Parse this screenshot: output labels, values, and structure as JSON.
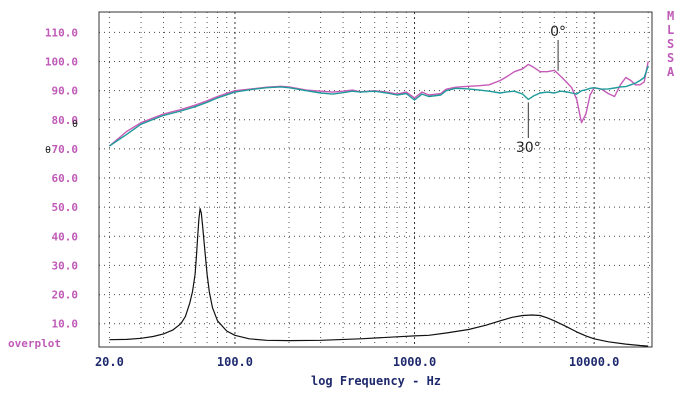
{
  "chart_data": {
    "type": "line",
    "xlabel": "log Frequency - Hz",
    "xscale": "log",
    "xlim": [
      17.5,
      21000
    ],
    "ylim": [
      2,
      117
    ],
    "grid": true,
    "y_ticks": [
      10,
      20,
      30,
      40,
      50,
      60,
      70,
      80,
      90,
      100,
      110
    ],
    "y_tick_labels": [
      "10.0",
      "20.0",
      "30.0",
      "40.0",
      "50.0",
      "60.0",
      "70.0",
      "80.0",
      "90.0",
      "100.0",
      "110.0"
    ],
    "x_tick_labels": [
      {
        "value": 20,
        "label": "20.0"
      },
      {
        "value": 100,
        "label": "100.0"
      },
      {
        "value": 1000,
        "label": "1000.0"
      },
      {
        "value": 10000,
        "label": "10000.0"
      }
    ],
    "overplot_label": "overplot",
    "right_edge_letters": [
      "M",
      "L",
      "S",
      "S",
      "A"
    ],
    "stray_marks": [
      "θ",
      "θ"
    ],
    "annotations": [
      {
        "text": "0°",
        "series": "0deg",
        "at_x": 6300
      },
      {
        "text": "30°",
        "series": "30deg",
        "at_x": 4300
      }
    ],
    "series": [
      {
        "key": "0deg",
        "color": "#c65ab8",
        "x": [
          20,
          25,
          30,
          40,
          50,
          60,
          70,
          80,
          100,
          120,
          150,
          180,
          200,
          250,
          300,
          350,
          400,
          450,
          500,
          600,
          700,
          800,
          900,
          1000,
          1100,
          1200,
          1400,
          1500,
          1700,
          2000,
          2300,
          2600,
          3000,
          3300,
          3600,
          4000,
          4300,
          4600,
          5000,
          5500,
          6000,
          6500,
          7000,
          7500,
          8000,
          8500,
          9000,
          9500,
          10000,
          11000,
          12000,
          13000,
          14000,
          15000,
          16000,
          17000,
          18000,
          19000,
          20000
        ],
        "y": [
          71,
          76,
          79,
          82,
          83.5,
          85,
          86.5,
          88,
          90,
          90.5,
          91.2,
          91.5,
          91.3,
          90.2,
          89.8,
          89.5,
          89.8,
          90.2,
          89.6,
          90,
          89.5,
          88.8,
          89.5,
          87.5,
          89.5,
          88.5,
          89,
          90.5,
          91.2,
          91.5,
          91.7,
          92,
          93.5,
          95,
          96.5,
          97.5,
          99,
          98,
          96.5,
          96.5,
          97,
          95,
          93,
          91,
          87,
          79,
          82,
          88.5,
          91,
          90.5,
          89,
          88,
          92,
          94.5,
          93.5,
          92,
          92,
          93,
          100
        ]
      },
      {
        "key": "30deg",
        "color": "#1f9a9a",
        "x": [
          20,
          25,
          30,
          40,
          50,
          60,
          70,
          80,
          100,
          120,
          150,
          180,
          200,
          250,
          300,
          350,
          400,
          450,
          500,
          600,
          700,
          800,
          900,
          1000,
          1100,
          1200,
          1400,
          1500,
          1700,
          2000,
          2300,
          2600,
          3000,
          3300,
          3600,
          4000,
          4300,
          4600,
          5000,
          5500,
          6000,
          6500,
          7000,
          7500,
          8000,
          8500,
          9000,
          9500,
          10000,
          11000,
          12000,
          13000,
          14000,
          15000,
          16000,
          17000,
          18000,
          19000,
          20000
        ],
        "y": [
          71,
          75,
          78.5,
          81.5,
          83,
          84.5,
          86,
          87.5,
          89.5,
          90.3,
          91,
          91.3,
          91,
          90,
          89.2,
          88.8,
          89.3,
          89.8,
          89.5,
          89.8,
          89.2,
          88.5,
          89,
          86.8,
          88.8,
          88,
          88.5,
          90,
          90.8,
          90.6,
          90.2,
          89.8,
          89.2,
          89.6,
          89.8,
          88.8,
          87,
          88.2,
          89.2,
          89.5,
          89.2,
          89.8,
          89.6,
          89.2,
          88.8,
          90,
          90.3,
          90.8,
          91,
          90.5,
          90.6,
          90.9,
          91.3,
          91.4,
          92,
          92.6,
          93.5,
          94.5,
          98.5
        ]
      },
      {
        "key": "impedance",
        "color": "#111111",
        "x": [
          20,
          25,
          30,
          35,
          40,
          45,
          50,
          53,
          56,
          58,
          60,
          61,
          62,
          63,
          64,
          65,
          66,
          68,
          70,
          72,
          75,
          80,
          90,
          100,
          120,
          150,
          200,
          300,
          500,
          800,
          1000,
          1200,
          1500,
          2000,
          2500,
          3000,
          3500,
          4000,
          4500,
          5000,
          5500,
          6000,
          7000,
          8000,
          9000,
          10000,
          12000,
          15000,
          18000,
          20000
        ],
        "y": [
          4.5,
          4.6,
          5,
          5.6,
          6.5,
          7.8,
          10,
          12.5,
          17,
          21,
          27,
          33,
          40,
          46,
          49.5,
          48,
          44,
          35,
          27,
          21,
          15.5,
          11,
          7.5,
          6,
          4.8,
          4.3,
          4.2,
          4.3,
          4.8,
          5.5,
          5.8,
          6,
          6.8,
          8,
          9.5,
          11,
          12.2,
          12.8,
          13,
          12.8,
          12,
          11,
          9,
          7.2,
          5.8,
          4.8,
          3.8,
          3,
          2.5,
          2.3
        ]
      }
    ]
  }
}
